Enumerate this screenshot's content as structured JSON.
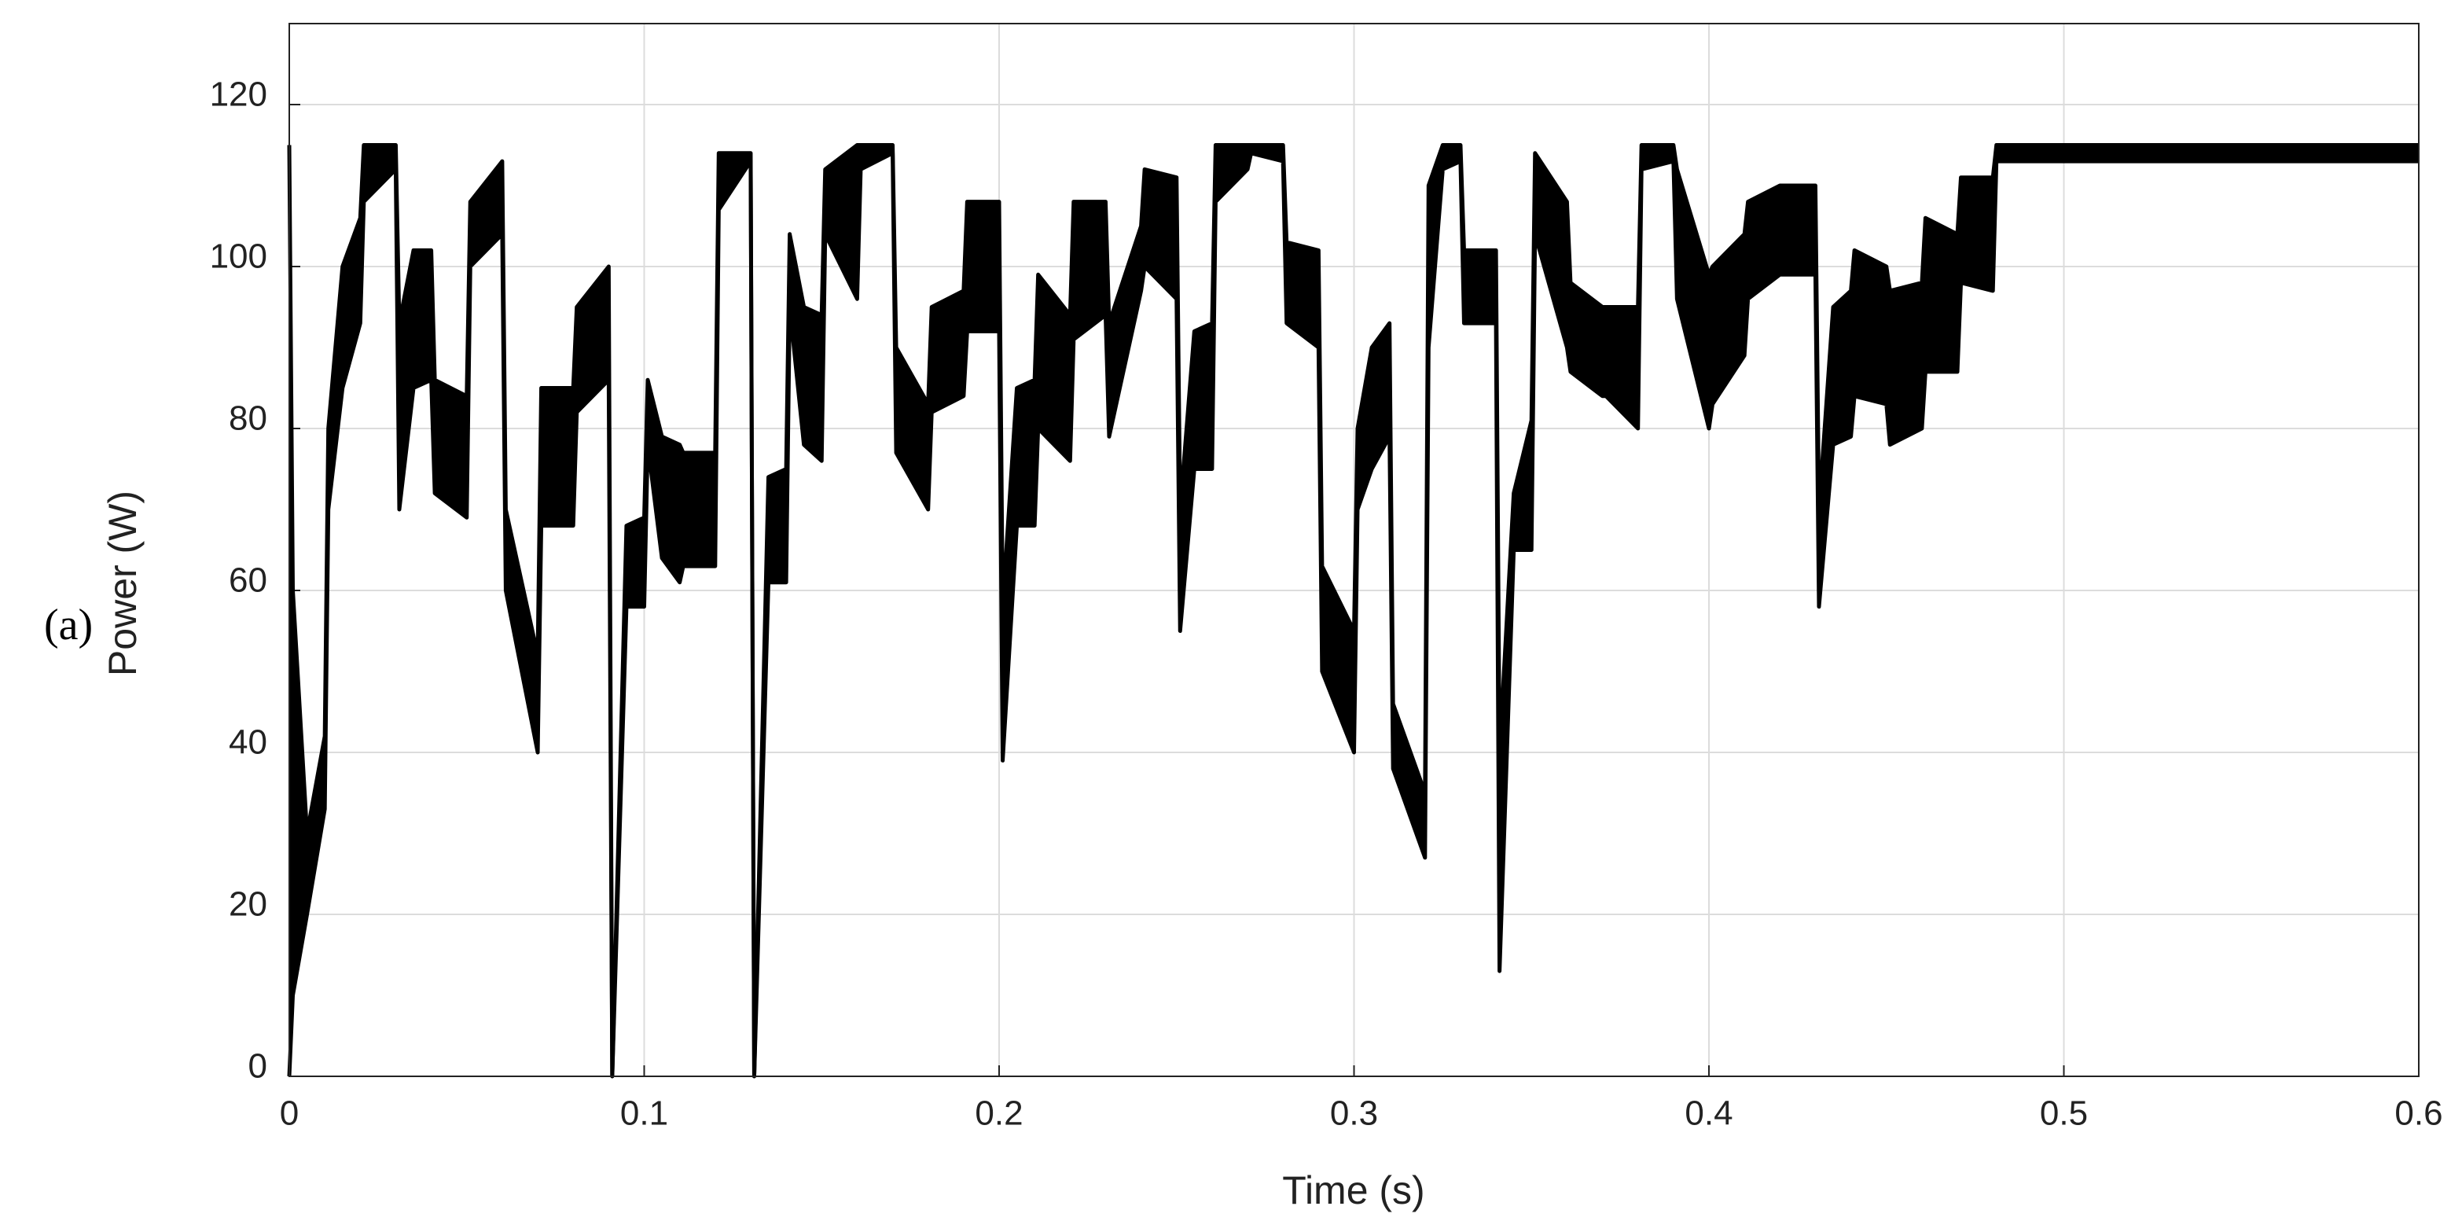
{
  "chart_data": {
    "type": "band",
    "side_label": "(a)",
    "xlabel": "Time (s)",
    "ylabel": "Power (W)",
    "x": [
      0,
      0.001,
      0.005,
      0.01,
      0.011,
      0.015,
      0.02,
      0.021,
      0.03,
      0.031,
      0.035,
      0.04,
      0.041,
      0.05,
      0.051,
      0.06,
      0.061,
      0.07,
      0.071,
      0.08,
      0.081,
      0.09,
      0.091,
      0.095,
      0.1,
      0.101,
      0.105,
      0.11,
      0.111,
      0.12,
      0.121,
      0.13,
      0.131,
      0.135,
      0.14,
      0.141,
      0.145,
      0.15,
      0.151,
      0.16,
      0.161,
      0.17,
      0.171,
      0.18,
      0.181,
      0.19,
      0.191,
      0.2,
      0.201,
      0.205,
      0.21,
      0.211,
      0.22,
      0.221,
      0.23,
      0.231,
      0.24,
      0.241,
      0.25,
      0.251,
      0.255,
      0.26,
      0.261,
      0.27,
      0.271,
      0.28,
      0.281,
      0.29,
      0.291,
      0.3,
      0.301,
      0.305,
      0.31,
      0.311,
      0.32,
      0.321,
      0.325,
      0.33,
      0.331,
      0.34,
      0.341,
      0.345,
      0.35,
      0.351,
      0.36,
      0.361,
      0.37,
      0.371,
      0.38,
      0.381,
      0.39,
      0.391,
      0.4,
      0.401,
      0.41,
      0.411,
      0.42,
      0.421,
      0.43,
      0.431,
      0.435,
      0.44,
      0.441,
      0.45,
      0.451,
      0.46,
      0.461,
      0.47,
      0.471,
      0.48,
      0.481,
      0.6
    ],
    "series": [
      {
        "color": "#000000",
        "values": [
          115,
          60,
          30,
          42,
          80,
          100,
          106,
          115,
          115,
          93,
          102,
          102,
          86,
          84,
          108,
          113,
          70,
          52,
          85,
          85,
          95,
          100,
          0,
          68,
          69,
          86,
          79,
          78,
          77,
          77,
          114,
          114,
          0,
          74,
          75,
          104,
          95,
          94,
          112,
          115,
          115,
          115,
          90,
          83,
          95,
          97,
          108,
          108,
          58,
          85,
          86,
          99,
          94,
          108,
          108,
          93,
          105,
          112,
          111,
          70,
          92,
          93,
          115,
          115,
          115,
          115,
          103,
          102,
          63,
          55,
          80,
          90,
          93,
          46,
          35,
          110,
          115,
          115,
          102,
          102,
          40,
          72,
          81,
          114,
          108,
          98,
          95,
          95,
          95,
          115,
          115,
          112,
          99,
          100,
          104,
          108,
          110,
          110,
          110,
          70,
          95,
          97,
          102,
          100,
          97,
          98,
          106,
          104,
          111,
          111,
          115,
          115
        ]
      },
      {
        "color": "#000000",
        "values": [
          0,
          10,
          20,
          33,
          70,
          85,
          93,
          108,
          112,
          70,
          85,
          86,
          72,
          69,
          100,
          104,
          60,
          40,
          68,
          68,
          82,
          86,
          0,
          58,
          58,
          78,
          64,
          61,
          63,
          63,
          107,
          113,
          0,
          61,
          61,
          95,
          78,
          76,
          104,
          96,
          112,
          114,
          77,
          70,
          82,
          84,
          92,
          92,
          39,
          68,
          68,
          80,
          76,
          91,
          94,
          79,
          97,
          100,
          96,
          55,
          75,
          75,
          108,
          112,
          114,
          113,
          93,
          90,
          50,
          40,
          70,
          75,
          79,
          38,
          27,
          90,
          112,
          113,
          93,
          93,
          13,
          65,
          65,
          104,
          90,
          87,
          84,
          84,
          80,
          112,
          113,
          96,
          80,
          83,
          89,
          96,
          99,
          99,
          99,
          58,
          78,
          79,
          84,
          83,
          78,
          80,
          87,
          87,
          98,
          97,
          113,
          113
        ]
      }
    ],
    "xlim": [
      0,
      0.6
    ],
    "xticks": [
      0,
      0.1,
      0.2,
      0.3,
      0.4,
      0.5,
      0.6
    ],
    "ylim": [
      0,
      130
    ],
    "yticks": [
      0,
      20,
      40,
      60,
      80,
      100,
      120
    ],
    "grid": true
  }
}
